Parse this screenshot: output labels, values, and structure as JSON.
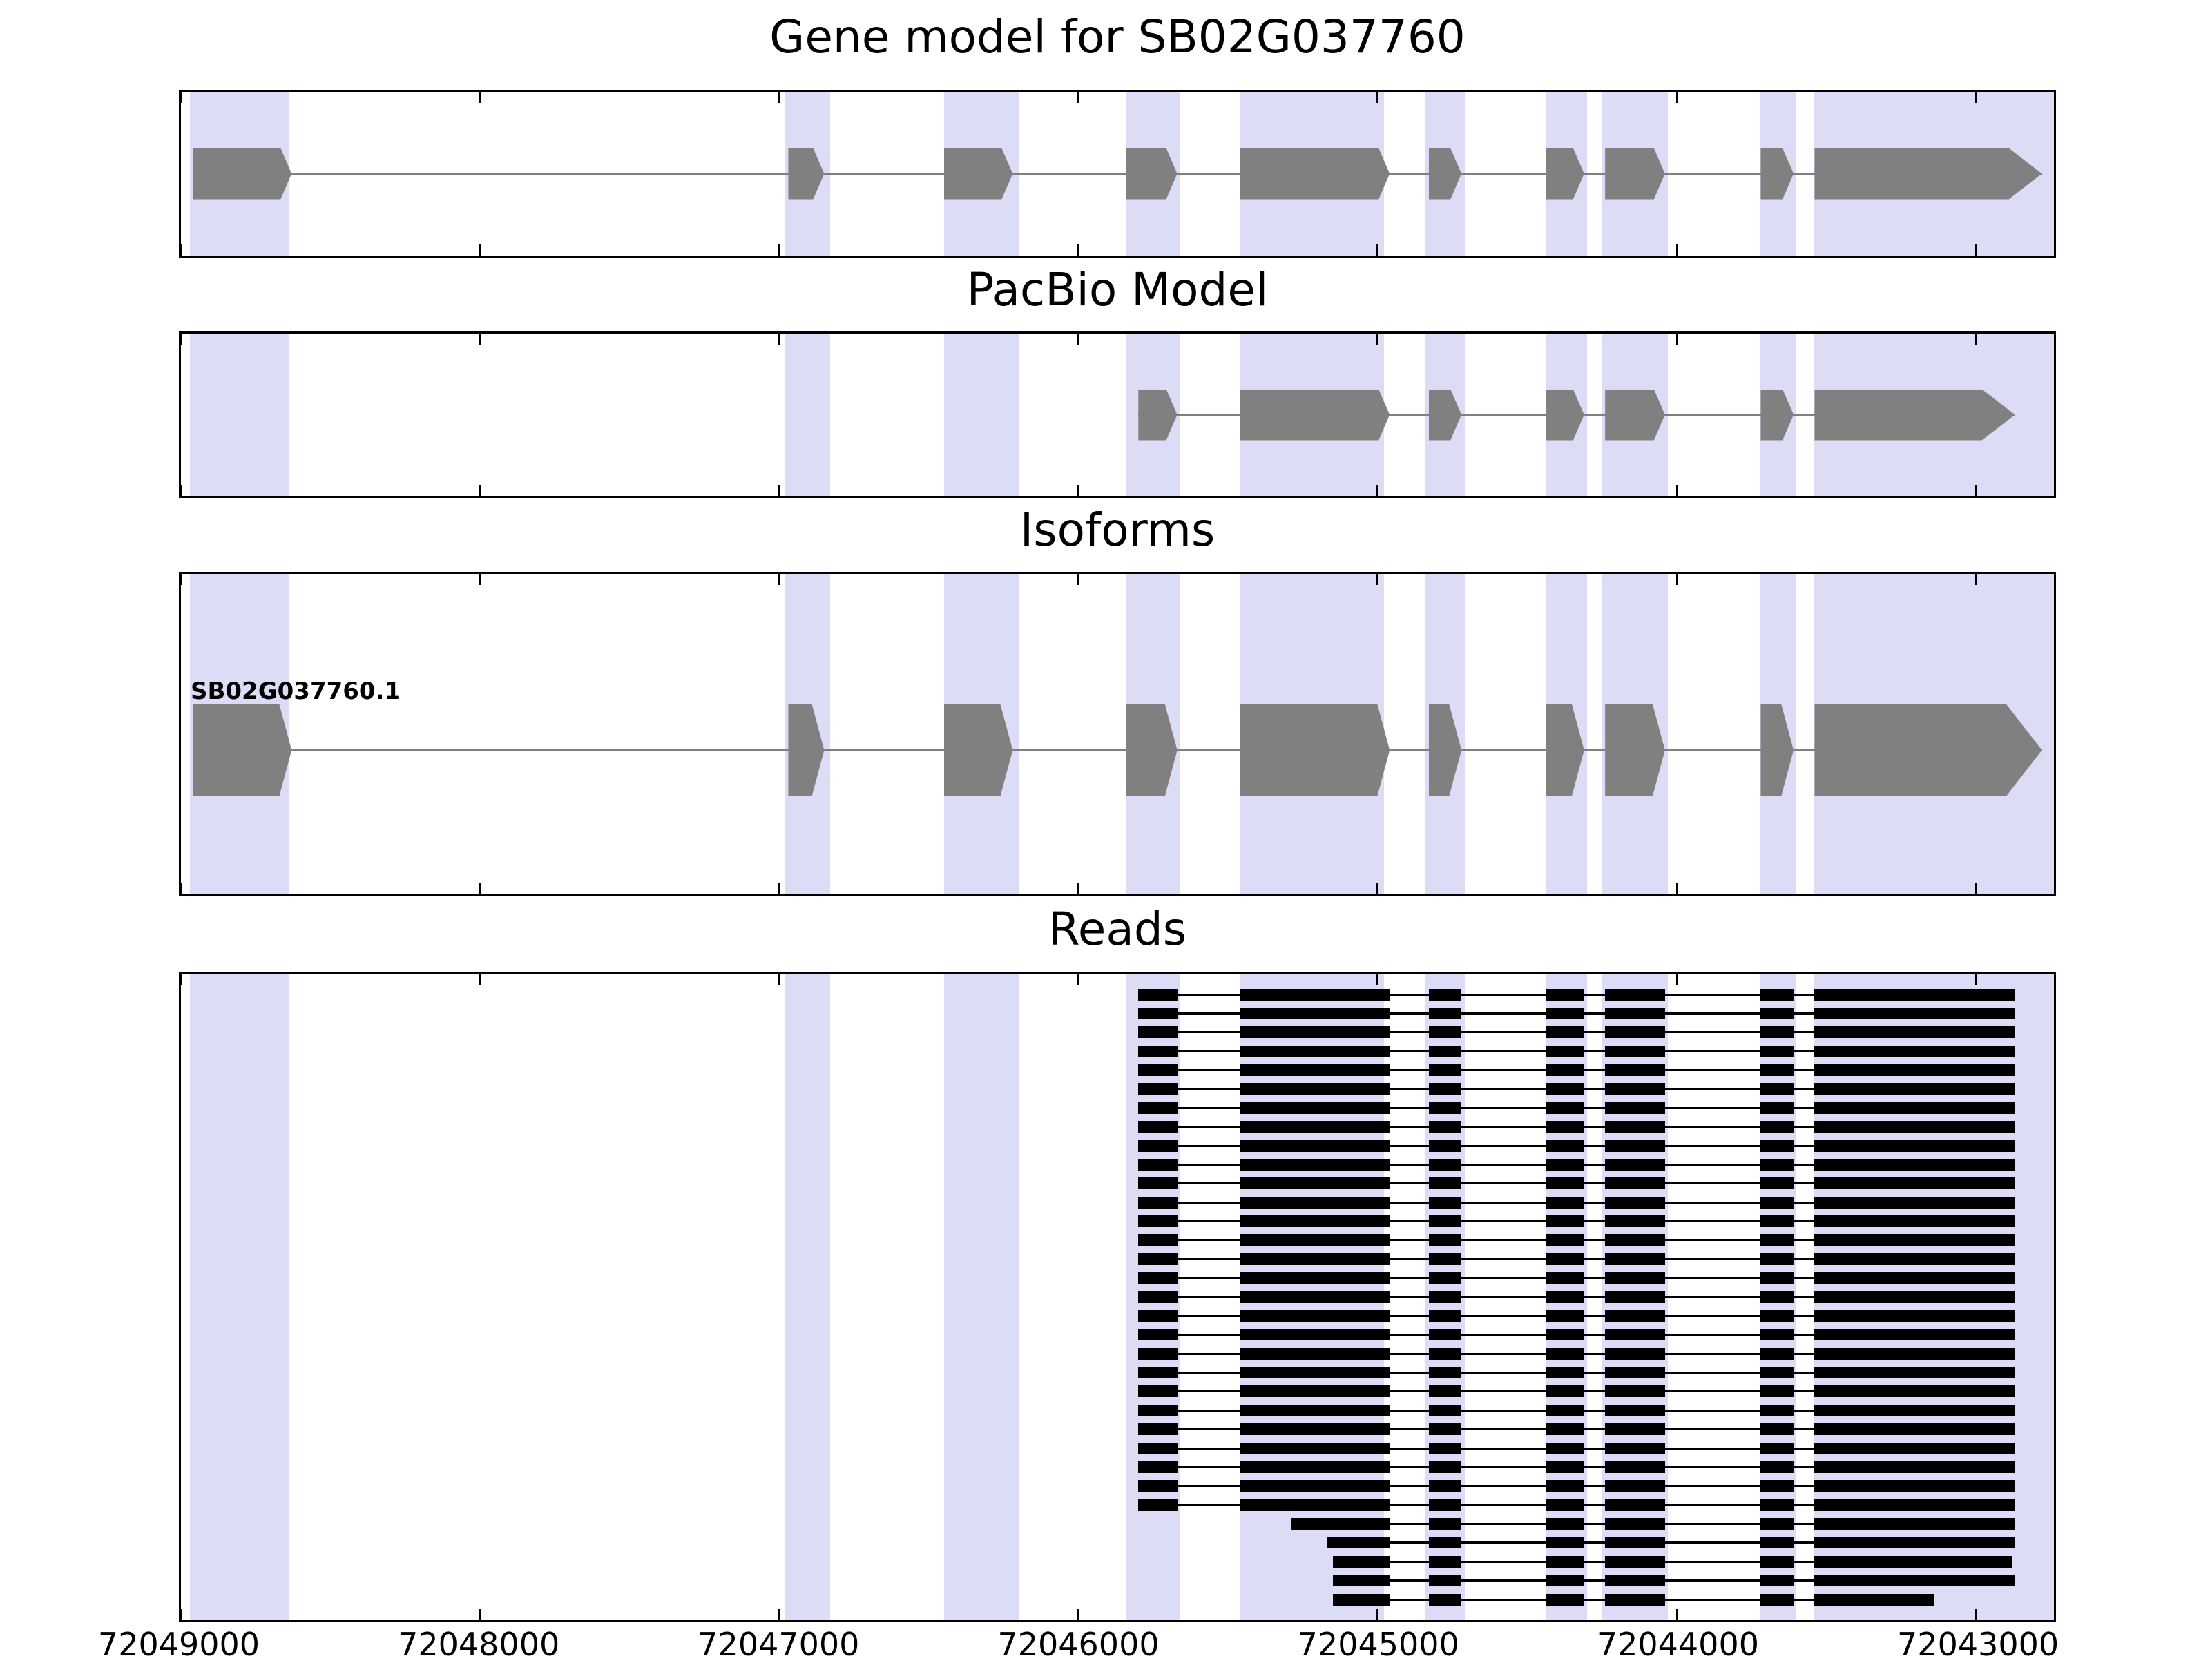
{
  "chart_data": {
    "type": "gene-model",
    "figure_title": "Gene model for SB02G037760",
    "axis": {
      "unit": "bp",
      "orientation": "reversed",
      "left_bp": 72049000,
      "right_bp": 72042740,
      "tick_positions": [
        72049000,
        72048000,
        72047000,
        72046000,
        72045000,
        72044000,
        72043000
      ],
      "tick_labels": [
        "72049000",
        "72048000",
        "72047000",
        "72046000",
        "72045000",
        "72044000",
        "72043000"
      ]
    },
    "highlight_bands_bp": [
      [
        72048970,
        72048640
      ],
      [
        72046980,
        72046830
      ],
      [
        72046450,
        72046200
      ],
      [
        72045840,
        72045660
      ],
      [
        72045460,
        72044980
      ],
      [
        72044840,
        72044710
      ],
      [
        72044440,
        72044300
      ],
      [
        72044250,
        72044030
      ],
      [
        72043720,
        72043600
      ],
      [
        72043540,
        72042740
      ]
    ],
    "panels": {
      "gene": {
        "title": "Gene model for SB02G037760",
        "strand": "right",
        "exons_bp": [
          [
            72048960,
            72048630
          ],
          [
            72046970,
            72046850
          ],
          [
            72046450,
            72046220
          ],
          [
            72045840,
            72045670
          ],
          [
            72045460,
            72044960
          ],
          [
            72044830,
            72044720
          ],
          [
            72044440,
            72044310
          ],
          [
            72044240,
            72044040
          ],
          [
            72043720,
            72043610
          ],
          [
            72043540,
            72042780
          ]
        ]
      },
      "pacbio": {
        "title": "PacBio Model",
        "strand": "right",
        "exons_bp": [
          [
            72045800,
            72045670
          ],
          [
            72045460,
            72044960
          ],
          [
            72044830,
            72044720
          ],
          [
            72044440,
            72044310
          ],
          [
            72044240,
            72044040
          ],
          [
            72043720,
            72043610
          ],
          [
            72043540,
            72042870
          ]
        ]
      },
      "isoforms": {
        "title": "Isoforms",
        "isoform_label": "SB02G037760.1",
        "strand": "right",
        "exons_bp": [
          [
            72048960,
            72048630
          ],
          [
            72046970,
            72046850
          ],
          [
            72046450,
            72046220
          ],
          [
            72045840,
            72045670
          ],
          [
            72045460,
            72044960
          ],
          [
            72044830,
            72044720
          ],
          [
            72044440,
            72044310
          ],
          [
            72044240,
            72044040
          ],
          [
            72043720,
            72043610
          ],
          [
            72043540,
            72042780
          ]
        ]
      },
      "reads": {
        "title": "Reads",
        "block_structure_bp": [
          [
            72045800,
            72045670
          ],
          [
            72045460,
            72044960
          ],
          [
            72044830,
            72044720
          ],
          [
            72044440,
            72044310
          ],
          [
            72044240,
            72044040
          ],
          [
            72043720,
            72043610
          ],
          [
            72043540,
            72042870
          ]
        ],
        "reads_bp": [
          [
            72045800,
            72042870
          ],
          [
            72045800,
            72042870
          ],
          [
            72045800,
            72042870
          ],
          [
            72045800,
            72042870
          ],
          [
            72045800,
            72042870
          ],
          [
            72045800,
            72042870
          ],
          [
            72045800,
            72042870
          ],
          [
            72045800,
            72042870
          ],
          [
            72045800,
            72042870
          ],
          [
            72045800,
            72042870
          ],
          [
            72045800,
            72042870
          ],
          [
            72045800,
            72042870
          ],
          [
            72045800,
            72042870
          ],
          [
            72045800,
            72042870
          ],
          [
            72045800,
            72042870
          ],
          [
            72045800,
            72042870
          ],
          [
            72045800,
            72042870
          ],
          [
            72045800,
            72042870
          ],
          [
            72045800,
            72042870
          ],
          [
            72045800,
            72042870
          ],
          [
            72045800,
            72042870
          ],
          [
            72045800,
            72042870
          ],
          [
            72045800,
            72042870
          ],
          [
            72045800,
            72042870
          ],
          [
            72045800,
            72042870
          ],
          [
            72045800,
            72042870
          ],
          [
            72045800,
            72042870
          ],
          [
            72045800,
            72042870
          ],
          [
            72045290,
            72042870
          ],
          [
            72045170,
            72042870
          ],
          [
            72045150,
            72042880
          ],
          [
            72045150,
            72042870
          ],
          [
            72045150,
            72043140
          ]
        ]
      }
    },
    "colors": {
      "exon": "#808080",
      "connector": "#808080",
      "read": "#000000",
      "band": "#dcdcf6",
      "border": "#000000",
      "background": "#ffffff",
      "text": "#000000"
    }
  }
}
